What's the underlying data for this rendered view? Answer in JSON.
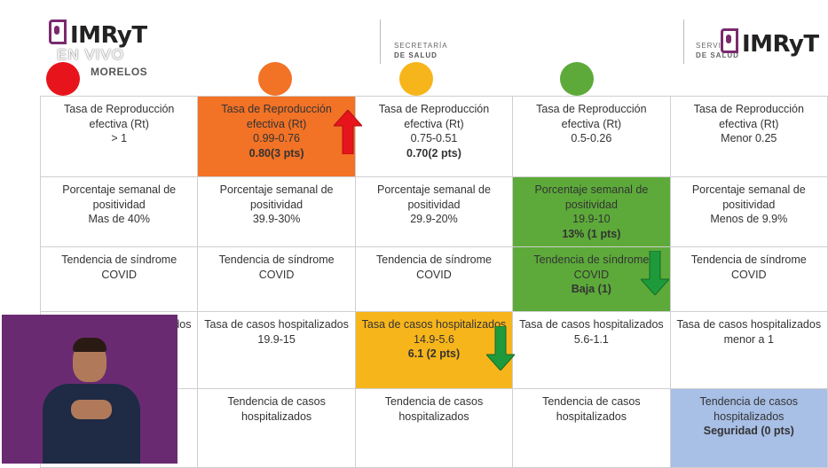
{
  "header": {
    "logo_left": "IMRyT",
    "en_vivo": "EN VIVO",
    "morelos": "MORELOS",
    "secretaria_line1": "SECRETARÍA",
    "secretaria_line2": "DE SALUD",
    "servicios_line1": "SERVI",
    "servicios_line2": "DE SALUD",
    "logo_right": "IMRyT"
  },
  "colors": {
    "red": "#e8141b",
    "orange": "#f27226",
    "yellow": "#f7b51c",
    "green": "#5daa3a",
    "blue": "#a8bfe6",
    "arrow_red": "#e8141b",
    "arrow_green": "#1e9a3a"
  },
  "table": {
    "rows": [
      [
        "Tasa de Reproducción efectiva (Rt)\n> 1",
        "Tasa de Reproducción efectiva (Rt)\n0.99-0.76\n**0.80(3 pts)",
        "Tasa de Reproducción efectiva (Rt)\n0.75-0.51\n**0.70(2 pts)",
        "Tasa de Reproducción efectiva (Rt)\n0.5-0.26",
        "Tasa de Reproducción efectiva (Rt)\nMenor 0.25"
      ],
      [
        "Porcentaje semanal de positividad\nMas de 40%",
        "Porcentaje semanal de positividad\n39.9-30%",
        "Porcentaje semanal de positividad\n29.9-20%",
        "Porcentaje semanal de positividad\n19.9-10\n**13% (1 pts)",
        "Porcentaje semanal de positividad\nMenos de 9.9%"
      ],
      [
        "Tendencia de síndrome COVID",
        "Tendencia de síndrome COVID",
        "Tendencia de síndrome COVID",
        "Tendencia de síndrome COVID\n**Baja (1)",
        "Tendencia de síndrome COVID"
      ],
      [
        "Tasa de casos hospitalizados",
        "Tasa de casos hospitalizados\n19.9-15",
        "Tasa de casos hospitalizados\n14.9-5.6\n**6.1 (2 pts)",
        "Tasa de casos hospitalizados\n5.6-1.1",
        "Tasa de casos hospitalizados\nmenor  a 1"
      ],
      [
        "",
        "Tendencia de casos hospitalizados",
        "Tendencia de casos hospitalizados",
        "Tendencia de casos hospitalizados",
        "Tendencia de casos hospitalizados\n**Seguridad (0 pts)"
      ]
    ],
    "cell_colors": [
      [
        "",
        "orange",
        "",
        "",
        ""
      ],
      [
        "",
        "",
        "",
        "green",
        ""
      ],
      [
        "",
        "",
        "",
        "green",
        ""
      ],
      [
        "",
        "",
        "yellow",
        "",
        ""
      ],
      [
        "",
        "",
        "",
        "",
        "blue"
      ]
    ]
  }
}
